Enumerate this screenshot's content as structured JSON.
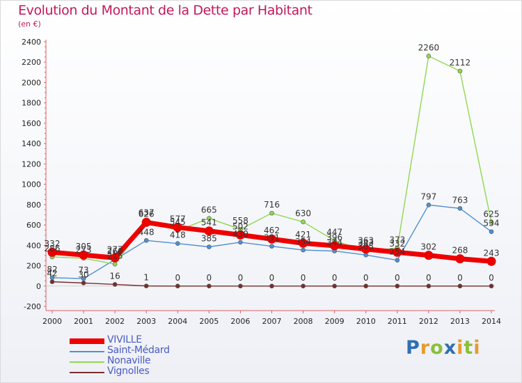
{
  "title": "Evolution du Montant de la Dette par Habitant",
  "subtitle": "(en €)",
  "brand": {
    "text": "Proxiti",
    "letters": [
      {
        "ch": "P",
        "color": "#2f6fb3"
      },
      {
        "ch": "r",
        "color": "#e89a2e"
      },
      {
        "ch": "o",
        "color": "#8bbf3c"
      },
      {
        "ch": "x",
        "color": "#2f6fb3"
      },
      {
        "ch": "i",
        "color": "#e89a2e"
      },
      {
        "ch": "t",
        "color": "#8bbf3c"
      },
      {
        "ch": "i",
        "color": "#e89a2e"
      }
    ]
  },
  "chart_data": {
    "type": "line",
    "title": "Evolution du Montant de la Dette par Habitant",
    "subtitle": "(en €)",
    "x": [
      "2000",
      "2001",
      "2002",
      "2003",
      "2004",
      "2005",
      "2006",
      "2007",
      "2008",
      "2009",
      "2010",
      "2011",
      "2012",
      "2013",
      "2014"
    ],
    "ylim": [
      -200,
      2400
    ],
    "yticks": [
      -200,
      0,
      200,
      400,
      600,
      800,
      1000,
      1200,
      1400,
      1600,
      1800,
      2000,
      2200,
      2400
    ],
    "grid": false,
    "legend": "bottom-left",
    "series": [
      {
        "name": "VIVILLE",
        "color": "#ee0000",
        "values": [
          332,
          305,
          277,
          626,
          577,
          541,
          502,
          462,
          421,
          396,
          363,
          332,
          302,
          268,
          243
        ],
        "labels": [
          "332",
          "305",
          "277",
          "626",
          "577",
          "541",
          "502",
          "462",
          "421",
          "396",
          "363",
          "332",
          "302",
          "268",
          "243"
        ]
      },
      {
        "name": "Saint-Médard",
        "color": "#4f8fd1",
        "values": [
          82,
          73,
          260,
          448,
          418,
          385,
          430,
          391,
          354,
          344,
          305,
          254,
          797,
          763,
          534
        ],
        "labels": [
          "82",
          "73",
          "260",
          "448",
          "418",
          "385",
          "430",
          "391",
          "354",
          "344",
          "305",
          "254",
          "797",
          "763",
          "534"
        ]
      },
      {
        "name": "Nonaville",
        "color": "#8ed84f",
        "values": [
          286,
          273,
          215,
          637,
          545,
          665,
          558,
          716,
          630,
          447,
          343,
          373,
          2260,
          2112,
          625
        ],
        "labels": [
          "286",
          "273",
          "215",
          "637",
          "545",
          "665",
          "558",
          "716",
          "630",
          "447",
          "343",
          "373",
          "2260",
          "2112",
          "625"
        ]
      },
      {
        "name": "Vignolles",
        "color": "#7a2d2d",
        "values": [
          42,
          30,
          16,
          1,
          0,
          0,
          0,
          0,
          0,
          0,
          0,
          0,
          0,
          0,
          0
        ],
        "labels": [
          "42",
          "30",
          "16",
          "1",
          "0",
          "0",
          "0",
          "0",
          "0",
          "0",
          "0",
          "0",
          "0",
          "0",
          "0"
        ]
      }
    ]
  }
}
